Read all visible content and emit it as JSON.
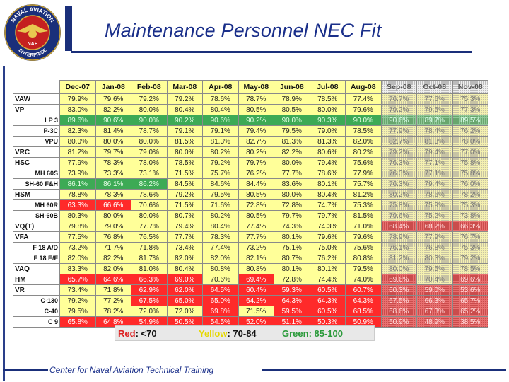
{
  "header": {
    "title": "Maintenance Personnel NEC Fit",
    "logo_text_top": "NAVAL AVIATION",
    "logo_text_bottom": "ENTERPRISE",
    "logo_center": "NAE"
  },
  "columns": [
    "Dec-07",
    "Jan-08",
    "Feb-08",
    "Mar-08",
    "Apr-08",
    "May-08",
    "Jun-08",
    "Jul-08",
    "Aug-08",
    "Sep-08",
    "Oct-08",
    "Nov-08"
  ],
  "rows": [
    {
      "label": "VAW",
      "sub": false,
      "values": [
        "79.9%",
        "79.6%",
        "79.2%",
        "79.2%",
        "78.6%",
        "78.7%",
        "78.9%",
        "78.5%",
        "77.4%",
        "76.7%",
        "77.6%",
        "75.3%"
      ],
      "colors": [
        "y",
        "y",
        "y",
        "y",
        "y",
        "y",
        "y",
        "y",
        "y",
        "sy",
        "sy",
        "sy"
      ]
    },
    {
      "label": "VP",
      "sub": false,
      "values": [
        "83.0%",
        "82.2%",
        "80.0%",
        "80.4%",
        "80.4%",
        "80.5%",
        "80.5%",
        "80.0%",
        "79.6%",
        "79.2%",
        "79.5%",
        "77.3%"
      ],
      "colors": [
        "y",
        "y",
        "y",
        "y",
        "y",
        "y",
        "y",
        "y",
        "y",
        "sy",
        "sy",
        "sy"
      ]
    },
    {
      "label": "LP 3",
      "sub": true,
      "values": [
        "89.6%",
        "90.6%",
        "90.0%",
        "90.2%",
        "90.6%",
        "90.2%",
        "90.0%",
        "90.3%",
        "90.0%",
        "90.6%",
        "89.7%",
        "89.5%"
      ],
      "colors": [
        "g",
        "g",
        "g",
        "g",
        "g",
        "g",
        "g",
        "g",
        "g",
        "sg",
        "sg",
        "sg"
      ]
    },
    {
      "label": "P-3C",
      "sub": true,
      "values": [
        "82.3%",
        "81.4%",
        "78.7%",
        "79.1%",
        "79.1%",
        "79.4%",
        "79.5%",
        "79.0%",
        "78.5%",
        "77.9%",
        "78.4%",
        "76.2%"
      ],
      "colors": [
        "y",
        "y",
        "y",
        "y",
        "y",
        "y",
        "y",
        "y",
        "y",
        "sy",
        "sy",
        "sy"
      ]
    },
    {
      "label": "VPU",
      "sub": true,
      "values": [
        "80.0%",
        "80.0%",
        "80.0%",
        "81.5%",
        "81.3%",
        "82.7%",
        "81.3%",
        "81.3%",
        "82.0%",
        "82.7%",
        "81.3%",
        "78.0%"
      ],
      "colors": [
        "y",
        "y",
        "y",
        "y",
        "y",
        "y",
        "y",
        "y",
        "y",
        "sy",
        "sy",
        "sy"
      ]
    },
    {
      "label": "VRC",
      "sub": false,
      "values": [
        "81.2%",
        "79.7%",
        "79.0%",
        "80.0%",
        "80.2%",
        "80.2%",
        "82.2%",
        "80.6%",
        "80.2%",
        "79.2%",
        "79.4%",
        "77.0%"
      ],
      "colors": [
        "y",
        "y",
        "y",
        "y",
        "y",
        "y",
        "y",
        "y",
        "y",
        "sy",
        "sy",
        "sy"
      ]
    },
    {
      "label": "HSC",
      "sub": false,
      "values": [
        "77.9%",
        "78.3%",
        "78.0%",
        "78.5%",
        "79.2%",
        "79.7%",
        "80.0%",
        "79.4%",
        "75.6%",
        "76.3%",
        "77.1%",
        "75.8%"
      ],
      "colors": [
        "y",
        "y",
        "y",
        "y",
        "y",
        "y",
        "y",
        "y",
        "y",
        "sy",
        "sy",
        "sy"
      ]
    },
    {
      "label": "MH 60S",
      "sub": true,
      "values": [
        "73.9%",
        "73.3%",
        "73.1%",
        "71.5%",
        "75.7%",
        "76.2%",
        "77.7%",
        "78.6%",
        "77.9%",
        "76.3%",
        "77.1%",
        "75.8%"
      ],
      "colors": [
        "y",
        "y",
        "y",
        "y",
        "y",
        "y",
        "y",
        "y",
        "y",
        "sy",
        "sy",
        "sy"
      ]
    },
    {
      "label": "SH-60 F&H",
      "sub": true,
      "values": [
        "86.1%",
        "86.1%",
        "86.2%",
        "84.5%",
        "84.6%",
        "84.4%",
        "83.6%",
        "80.1%",
        "75.7%",
        "76.3%",
        "79.4%",
        "76.0%"
      ],
      "colors": [
        "g",
        "g",
        "g",
        "y",
        "y",
        "y",
        "y",
        "y",
        "y",
        "sy",
        "sy",
        "sy"
      ]
    },
    {
      "label": "HSM",
      "sub": false,
      "values": [
        "78.8%",
        "78.3%",
        "78.6%",
        "79.2%",
        "79.5%",
        "80.5%",
        "80.0%",
        "80.4%",
        "81.2%",
        "80.2%",
        "78.6%",
        "78.2%"
      ],
      "colors": [
        "y",
        "y",
        "y",
        "y",
        "y",
        "y",
        "y",
        "y",
        "y",
        "sy",
        "sy",
        "sy"
      ]
    },
    {
      "label": "MH 60R",
      "sub": true,
      "values": [
        "63.3%",
        "66.6%",
        "70.6%",
        "71.5%",
        "71.6%",
        "72.8%",
        "72.8%",
        "74.7%",
        "75.3%",
        "75.8%",
        "75.9%",
        "75.3%"
      ],
      "colors": [
        "r",
        "r",
        "y",
        "y",
        "y",
        "y",
        "y",
        "y",
        "y",
        "sy",
        "sy",
        "sy"
      ]
    },
    {
      "label": "SH-60B",
      "sub": true,
      "values": [
        "80.3%",
        "80.0%",
        "80.0%",
        "80.7%",
        "80.2%",
        "80.5%",
        "79.7%",
        "79.7%",
        "81.5%",
        "79.6%",
        "75.2%",
        "73.8%"
      ],
      "colors": [
        "y",
        "y",
        "y",
        "y",
        "y",
        "y",
        "y",
        "y",
        "y",
        "sy",
        "sy",
        "sy"
      ]
    },
    {
      "label": "VQ(T)",
      "sub": false,
      "values": [
        "79.8%",
        "79.0%",
        "77.7%",
        "79.4%",
        "80.4%",
        "77.4%",
        "74.3%",
        "74.3%",
        "71.0%",
        "68.4%",
        "68.2%",
        "66.3%"
      ],
      "colors": [
        "y",
        "y",
        "y",
        "y",
        "y",
        "y",
        "y",
        "y",
        "y",
        "sr",
        "sr",
        "sr"
      ]
    },
    {
      "label": "VFA",
      "sub": false,
      "values": [
        "77.5%",
        "76.8%",
        "76.5%",
        "77.7%",
        "78.3%",
        "77.7%",
        "80.1%",
        "79.6%",
        "79.6%",
        "78.9%",
        "77.9%",
        "76.7%"
      ],
      "colors": [
        "y",
        "y",
        "y",
        "y",
        "y",
        "y",
        "y",
        "y",
        "y",
        "sy",
        "sy",
        "sy"
      ]
    },
    {
      "label": "F 18 A/D",
      "sub": true,
      "values": [
        "73.2%",
        "71.7%",
        "71.8%",
        "73.4%",
        "77.4%",
        "73.2%",
        "75.1%",
        "75.0%",
        "75.6%",
        "76.1%",
        "76.8%",
        "75.3%"
      ],
      "colors": [
        "y",
        "y",
        "y",
        "y",
        "y",
        "y",
        "y",
        "y",
        "y",
        "sy",
        "sy",
        "sy"
      ]
    },
    {
      "label": "F 18 E/F",
      "sub": true,
      "values": [
        "82.0%",
        "82.2%",
        "81.7%",
        "82.0%",
        "82.0%",
        "82.1%",
        "80.7%",
        "76.2%",
        "80.8%",
        "81.2%",
        "80.3%",
        "79.2%"
      ],
      "colors": [
        "y",
        "y",
        "y",
        "y",
        "y",
        "y",
        "y",
        "y",
        "y",
        "sy",
        "sy",
        "sy"
      ]
    },
    {
      "label": "VAQ",
      "sub": false,
      "values": [
        "83.3%",
        "82.0%",
        "81.0%",
        "80.4%",
        "80.8%",
        "80.8%",
        "80.1%",
        "80.1%",
        "79.5%",
        "80.0%",
        "79.5%",
        "78.5%"
      ],
      "colors": [
        "y",
        "y",
        "y",
        "y",
        "y",
        "y",
        "y",
        "y",
        "y",
        "sy",
        "sy",
        "sy"
      ]
    },
    {
      "label": "HM",
      "sub": false,
      "values": [
        "65.7%",
        "64.6%",
        "66.3%",
        "69.0%",
        "70.6%",
        "69.4%",
        "72.8%",
        "74.4%",
        "74.0%",
        "69.6%",
        "70.4%",
        "69.6%"
      ],
      "colors": [
        "r",
        "r",
        "r",
        "r",
        "y",
        "r",
        "y",
        "y",
        "y",
        "sr",
        "sy",
        "sr"
      ]
    },
    {
      "label": "VR",
      "sub": false,
      "values": [
        "73.4%",
        "71.8%",
        "62.9%",
        "62.0%",
        "64.5%",
        "60.4%",
        "59.3%",
        "60.5%",
        "60.7%",
        "60.3%",
        "59.0%",
        "53.6%"
      ],
      "colors": [
        "y",
        "y",
        "r",
        "r",
        "r",
        "r",
        "r",
        "r",
        "r",
        "sr",
        "sr",
        "sr"
      ]
    },
    {
      "label": "C-130",
      "sub": true,
      "values": [
        "79.2%",
        "77.2%",
        "67.5%",
        "65.0%",
        "65.0%",
        "64.2%",
        "64.3%",
        "64.3%",
        "64.3%",
        "67.5%",
        "66.3%",
        "65.7%"
      ],
      "colors": [
        "y",
        "y",
        "r",
        "r",
        "r",
        "r",
        "r",
        "r",
        "r",
        "sr",
        "sr",
        "sr"
      ]
    },
    {
      "label": "C-40",
      "sub": true,
      "values": [
        "79.5%",
        "78.2%",
        "72.0%",
        "72.0%",
        "69.8%",
        "71.5%",
        "59.5%",
        "60.5%",
        "68.5%",
        "68.6%",
        "67.3%",
        "65.2%"
      ],
      "colors": [
        "y",
        "y",
        "y",
        "y",
        "r",
        "y",
        "r",
        "r",
        "r",
        "sr",
        "sr",
        "sr"
      ]
    },
    {
      "label": "C 9",
      "sub": true,
      "values": [
        "65.8%",
        "64.8%",
        "54.9%",
        "50.5%",
        "54.5%",
        "52.0%",
        "51.1%",
        "50.3%",
        "50.9%",
        "50.9%",
        "48.9%",
        "38.5%"
      ],
      "colors": [
        "r",
        "r",
        "r",
        "r",
        "r",
        "r",
        "r",
        "r",
        "r",
        "sr",
        "sr",
        "sr"
      ]
    }
  ],
  "legend": {
    "red_label": "Red",
    "red_range": ": <70",
    "yellow_label": "Yellow",
    "yellow_range": ": 70-84",
    "green_label": "Green",
    "green_range": ": 85-100"
  },
  "footer": {
    "text": "Center for Naval Aviation Technical Training"
  },
  "colors": {
    "title_blue": "#1a2f8a",
    "yellow": "#ffff99",
    "red": "#ff2a2a",
    "green": "#3daa55"
  }
}
